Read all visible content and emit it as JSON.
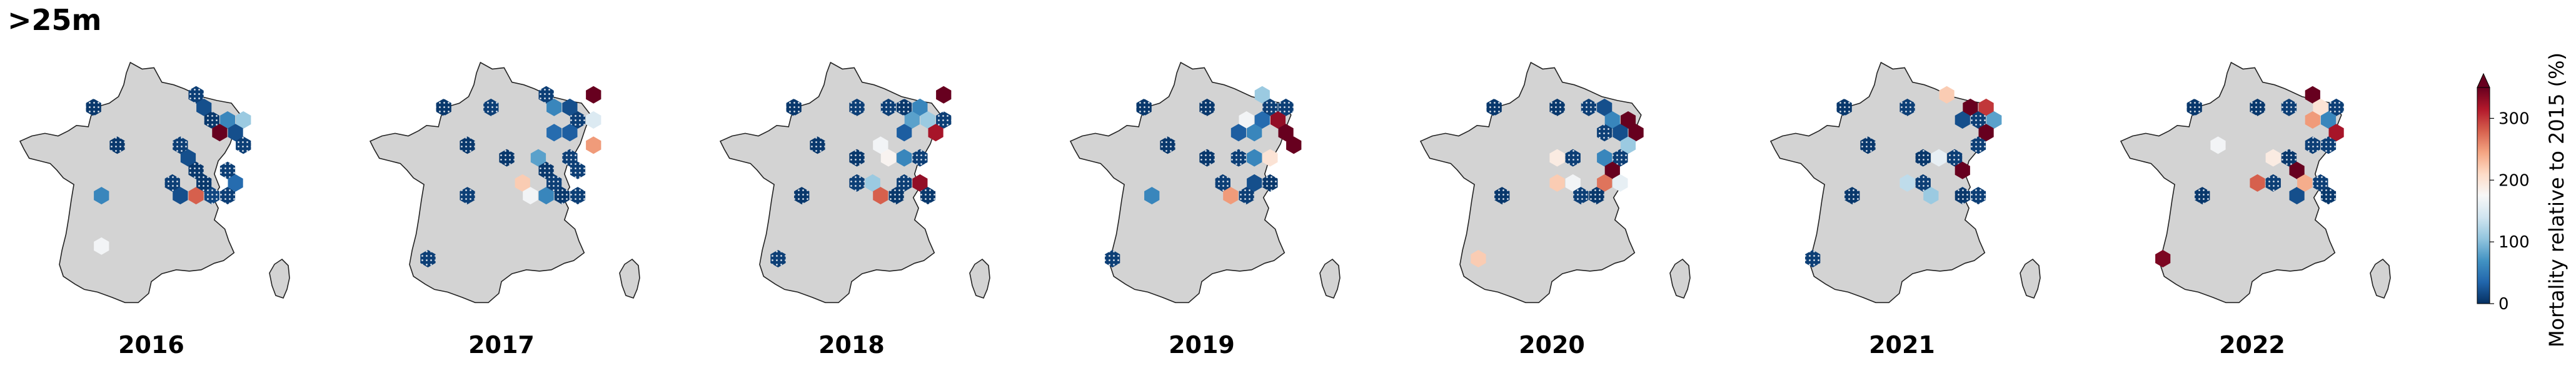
{
  "figure": {
    "title": ">25m",
    "colorbar": {
      "label": "Mortality relative to 2015 (%)",
      "ticks": [
        "0",
        "100",
        "200",
        "300"
      ],
      "tick_values": [
        0,
        100,
        200,
        300
      ],
      "range": [
        0,
        350
      ],
      "colormap": [
        "#053061",
        "#2166ac",
        "#4393c3",
        "#92c5de",
        "#d1e5f0",
        "#f7f7f7",
        "#fddbc7",
        "#f4a582",
        "#d6604d",
        "#b2182b",
        "#67001f"
      ],
      "extend": "max"
    },
    "land_color": "#d3d3d3",
    "outline_color": "#222222",
    "hatch": "dots"
  },
  "panels": [
    {
      "year": "2016",
      "cells": [
        {
          "col": 3,
          "row": 2,
          "value": 5
        },
        {
          "col": 9,
          "row": 1,
          "value": 10
        },
        {
          "col": 10,
          "row": 2,
          "value": 20
        },
        {
          "col": 11,
          "row": 3,
          "value": 60
        },
        {
          "col": 12,
          "row": 3,
          "value": 110
        },
        {
          "col": 10,
          "row": 3,
          "value": 5
        },
        {
          "col": 11,
          "row": 4,
          "value": 350
        },
        {
          "col": 12,
          "row": 4,
          "value": 20
        },
        {
          "col": 12,
          "row": 5,
          "value": 10
        },
        {
          "col": 4,
          "row": 5,
          "value": 5
        },
        {
          "col": 8,
          "row": 5,
          "value": 10
        },
        {
          "col": 9,
          "row": 6,
          "value": 20
        },
        {
          "col": 9,
          "row": 7,
          "value": 5
        },
        {
          "col": 11,
          "row": 7,
          "value": 10
        },
        {
          "col": 3,
          "row": 9,
          "value": 60
        },
        {
          "col": 8,
          "row": 8,
          "value": 10
        },
        {
          "col": 8,
          "row": 9,
          "value": 20
        },
        {
          "col": 9,
          "row": 9,
          "value": 280
        },
        {
          "col": 10,
          "row": 9,
          "value": 15
        },
        {
          "col": 10,
          "row": 8,
          "value": 5
        },
        {
          "col": 11,
          "row": 9,
          "value": 10
        },
        {
          "col": 12,
          "row": 8,
          "value": 40
        },
        {
          "col": 3,
          "row": 13,
          "value": 170
        }
      ]
    },
    {
      "year": "2017",
      "cells": [
        {
          "col": 3,
          "row": 2,
          "value": 5
        },
        {
          "col": 6,
          "row": 2,
          "value": 10
        },
        {
          "col": 9,
          "row": 1,
          "value": 10
        },
        {
          "col": 10,
          "row": 2,
          "value": 60
        },
        {
          "col": 11,
          "row": 2,
          "value": 20
        },
        {
          "col": 12,
          "row": 1,
          "value": 350
        },
        {
          "col": 11,
          "row": 3,
          "value": 10
        },
        {
          "col": 12,
          "row": 3,
          "value": 150
        },
        {
          "col": 10,
          "row": 4,
          "value": 40
        },
        {
          "col": 11,
          "row": 4,
          "value": 30
        },
        {
          "col": 12,
          "row": 5,
          "value": 250
        },
        {
          "col": 11,
          "row": 6,
          "value": 10
        },
        {
          "col": 4,
          "row": 5,
          "value": 5
        },
        {
          "col": 7,
          "row": 6,
          "value": 5
        },
        {
          "col": 9,
          "row": 6,
          "value": 80
        },
        {
          "col": 9,
          "row": 7,
          "value": 5
        },
        {
          "col": 11,
          "row": 7,
          "value": 10
        },
        {
          "col": 4,
          "row": 9,
          "value": 10
        },
        {
          "col": 8,
          "row": 8,
          "value": 220
        },
        {
          "col": 8,
          "row": 9,
          "value": 170
        },
        {
          "col": 9,
          "row": 9,
          "value": 60
        },
        {
          "col": 10,
          "row": 8,
          "value": 10
        },
        {
          "col": 10,
          "row": 9,
          "value": 5
        },
        {
          "col": 11,
          "row": 9,
          "value": 10
        },
        {
          "col": 2,
          "row": 14,
          "value": 10
        }
      ]
    },
    {
      "year": "2018",
      "cells": [
        {
          "col": 3,
          "row": 2,
          "value": 5
        },
        {
          "col": 7,
          "row": 2,
          "value": 10
        },
        {
          "col": 9,
          "row": 2,
          "value": 10
        },
        {
          "col": 10,
          "row": 2,
          "value": 5
        },
        {
          "col": 11,
          "row": 2,
          "value": 60
        },
        {
          "col": 12,
          "row": 1,
          "value": 350
        },
        {
          "col": 11,
          "row": 3,
          "value": 110
        },
        {
          "col": 12,
          "row": 3,
          "value": 10
        },
        {
          "col": 12,
          "row": 4,
          "value": 320
        },
        {
          "col": 10,
          "row": 3,
          "value": 80
        },
        {
          "col": 10,
          "row": 4,
          "value": 30
        },
        {
          "col": 4,
          "row": 5,
          "value": 5
        },
        {
          "col": 8,
          "row": 5,
          "value": 170
        },
        {
          "col": 9,
          "row": 6,
          "value": 180
        },
        {
          "col": 7,
          "row": 6,
          "value": 5
        },
        {
          "col": 10,
          "row": 6,
          "value": 60
        },
        {
          "col": 11,
          "row": 6,
          "value": 10
        },
        {
          "col": 3,
          "row": 9,
          "value": 5
        },
        {
          "col": 7,
          "row": 8,
          "value": 10
        },
        {
          "col": 8,
          "row": 8,
          "value": 110
        },
        {
          "col": 8,
          "row": 9,
          "value": 280
        },
        {
          "col": 9,
          "row": 9,
          "value": 5
        },
        {
          "col": 10,
          "row": 8,
          "value": 10
        },
        {
          "col": 11,
          "row": 8,
          "value": 330
        },
        {
          "col": 11,
          "row": 9,
          "value": 5
        },
        {
          "col": 2,
          "row": 14,
          "value": 10
        }
      ]
    },
    {
      "year": "2019",
      "cells": [
        {
          "col": 3,
          "row": 2,
          "value": 5
        },
        {
          "col": 7,
          "row": 2,
          "value": 5
        },
        {
          "col": 10,
          "row": 1,
          "value": 110
        },
        {
          "col": 11,
          "row": 2,
          "value": 10
        },
        {
          "col": 12,
          "row": 2,
          "value": 10
        },
        {
          "col": 9,
          "row": 3,
          "value": 170
        },
        {
          "col": 10,
          "row": 3,
          "value": 40
        },
        {
          "col": 11,
          "row": 3,
          "value": 330
        },
        {
          "col": 12,
          "row": 4,
          "value": 350
        },
        {
          "col": 12,
          "row": 5,
          "value": 350
        },
        {
          "col": 10,
          "row": 4,
          "value": 60
        },
        {
          "col": 9,
          "row": 4,
          "value": 30
        },
        {
          "col": 4,
          "row": 5,
          "value": 5
        },
        {
          "col": 7,
          "row": 6,
          "value": 5
        },
        {
          "col": 9,
          "row": 6,
          "value": 10
        },
        {
          "col": 10,
          "row": 6,
          "value": 60
        },
        {
          "col": 11,
          "row": 6,
          "value": 200
        },
        {
          "col": 3,
          "row": 9,
          "value": 60
        },
        {
          "col": 8,
          "row": 8,
          "value": 10
        },
        {
          "col": 8,
          "row": 9,
          "value": 250
        },
        {
          "col": 9,
          "row": 9,
          "value": 10
        },
        {
          "col": 10,
          "row": 8,
          "value": 20
        },
        {
          "col": 11,
          "row": 8,
          "value": 5
        },
        {
          "col": 1,
          "row": 14,
          "value": 10
        }
      ]
    },
    {
      "year": "2020",
      "cells": [
        {
          "col": 3,
          "row": 2,
          "value": 5
        },
        {
          "col": 7,
          "row": 2,
          "value": 5
        },
        {
          "col": 10,
          "row": 2,
          "value": 20
        },
        {
          "col": 9,
          "row": 2,
          "value": 10
        },
        {
          "col": 11,
          "row": 3,
          "value": 350
        },
        {
          "col": 12,
          "row": 4,
          "value": 350
        },
        {
          "col": 10,
          "row": 3,
          "value": 60
        },
        {
          "col": 10,
          "row": 4,
          "value": 10
        },
        {
          "col": 11,
          "row": 4,
          "value": 20
        },
        {
          "col": 11,
          "row": 5,
          "value": 110
        },
        {
          "col": 7,
          "row": 6,
          "value": 190
        },
        {
          "col": 8,
          "row": 6,
          "value": 10
        },
        {
          "col": 10,
          "row": 6,
          "value": 60
        },
        {
          "col": 11,
          "row": 6,
          "value": 10
        },
        {
          "col": 3,
          "row": 9,
          "value": 5
        },
        {
          "col": 7,
          "row": 8,
          "value": 220
        },
        {
          "col": 8,
          "row": 8,
          "value": 170
        },
        {
          "col": 8,
          "row": 9,
          "value": 10
        },
        {
          "col": 10,
          "row": 7,
          "value": 350
        },
        {
          "col": 10,
          "row": 8,
          "value": 270
        },
        {
          "col": 11,
          "row": 8,
          "value": 160
        },
        {
          "col": 9,
          "row": 9,
          "value": 5
        },
        {
          "col": 2,
          "row": 14,
          "value": 220
        }
      ]
    },
    {
      "year": "2021",
      "cells": [
        {
          "col": 3,
          "row": 2,
          "value": 5
        },
        {
          "col": 7,
          "row": 2,
          "value": 10
        },
        {
          "col": 9,
          "row": 1,
          "value": 220
        },
        {
          "col": 11,
          "row": 2,
          "value": 350
        },
        {
          "col": 12,
          "row": 2,
          "value": 300
        },
        {
          "col": 10,
          "row": 3,
          "value": 20
        },
        {
          "col": 11,
          "row": 3,
          "value": 10
        },
        {
          "col": 12,
          "row": 3,
          "value": 80
        },
        {
          "col": 12,
          "row": 4,
          "value": 350
        },
        {
          "col": 11,
          "row": 5,
          "value": 10
        },
        {
          "col": 4,
          "row": 5,
          "value": 5
        },
        {
          "col": 9,
          "row": 6,
          "value": 160
        },
        {
          "col": 10,
          "row": 6,
          "value": 10
        },
        {
          "col": 8,
          "row": 6,
          "value": 5
        },
        {
          "col": 3,
          "row": 9,
          "value": 5
        },
        {
          "col": 7,
          "row": 8,
          "value": 130
        },
        {
          "col": 8,
          "row": 8,
          "value": 10
        },
        {
          "col": 8,
          "row": 9,
          "value": 110
        },
        {
          "col": 10,
          "row": 7,
          "value": 350
        },
        {
          "col": 10,
          "row": 9,
          "value": 5
        },
        {
          "col": 11,
          "row": 9,
          "value": 10
        },
        {
          "col": 1,
          "row": 14,
          "value": 10
        }
      ]
    },
    {
      "year": "2022",
      "cells": [
        {
          "col": 3,
          "row": 2,
          "value": 5
        },
        {
          "col": 7,
          "row": 2,
          "value": 5
        },
        {
          "col": 9,
          "row": 2,
          "value": 10
        },
        {
          "col": 10,
          "row": 1,
          "value": 350
        },
        {
          "col": 11,
          "row": 2,
          "value": 200
        },
        {
          "col": 12,
          "row": 2,
          "value": 10
        },
        {
          "col": 10,
          "row": 3,
          "value": 250
        },
        {
          "col": 11,
          "row": 3,
          "value": 60
        },
        {
          "col": 12,
          "row": 4,
          "value": 320
        },
        {
          "col": 11,
          "row": 5,
          "value": 10
        },
        {
          "col": 4,
          "row": 5,
          "value": 170
        },
        {
          "col": 8,
          "row": 6,
          "value": 190
        },
        {
          "col": 9,
          "row": 6,
          "value": 5
        },
        {
          "col": 10,
          "row": 5,
          "value": 10
        },
        {
          "col": 3,
          "row": 9,
          "value": 5
        },
        {
          "col": 7,
          "row": 8,
          "value": 280
        },
        {
          "col": 8,
          "row": 8,
          "value": 10
        },
        {
          "col": 9,
          "row": 7,
          "value": 350
        },
        {
          "col": 9,
          "row": 9,
          "value": 20
        },
        {
          "col": 10,
          "row": 8,
          "value": 240
        },
        {
          "col": 11,
          "row": 8,
          "value": 10
        },
        {
          "col": 11,
          "row": 9,
          "value": 5
        },
        {
          "col": 1,
          "row": 14,
          "value": 340
        }
      ]
    }
  ]
}
